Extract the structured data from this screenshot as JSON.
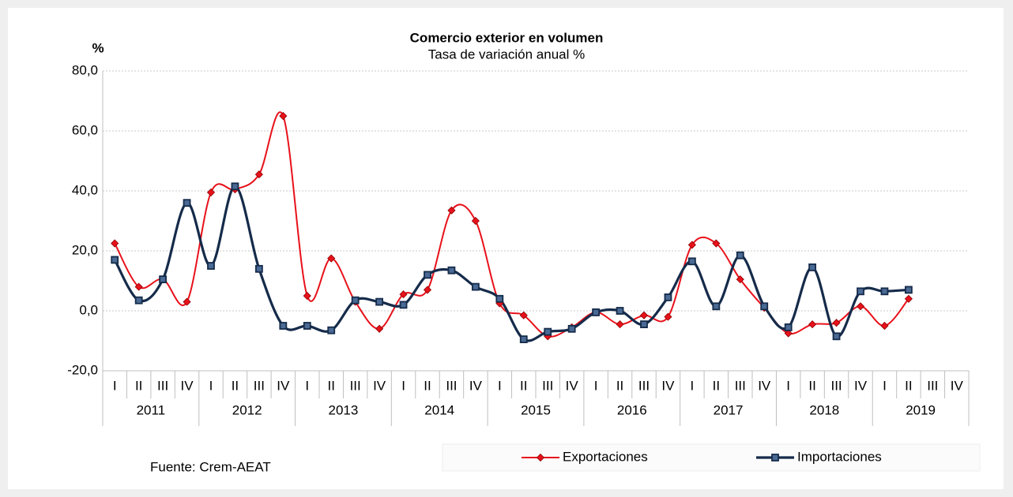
{
  "chart_data": {
    "type": "line",
    "title": "Comercio exterior en volumen",
    "subtitle": "Tasa de variación anual %",
    "y_label": "%",
    "source": "Fuente: Crem-AEAT",
    "categories": [
      "I",
      "II",
      "III",
      "IV",
      "I",
      "II",
      "III",
      "IV",
      "I",
      "II",
      "III",
      "IV",
      "I",
      "II",
      "III",
      "IV",
      "I",
      "II",
      "III",
      "IV",
      "I",
      "II",
      "III",
      "IV",
      "I",
      "II",
      "III",
      "IV",
      "I",
      "II",
      "III",
      "IV",
      "I",
      "II",
      "III",
      "IV"
    ],
    "category_groups": [
      "2011",
      "2012",
      "2013",
      "2014",
      "2015",
      "2016",
      "2017",
      "2018",
      "2019"
    ],
    "series": [
      {
        "name": "Exportaciones",
        "color": "#e8111a",
        "marker": "diamond",
        "values": [
          22.5,
          8,
          10.5,
          3,
          39.5,
          40.5,
          45.5,
          65,
          5,
          17.5,
          3,
          -6,
          5.5,
          7,
          33.5,
          30,
          2.5,
          -1.5,
          -8.5,
          -5.5,
          -0.5,
          -4.5,
          -1.5,
          -2,
          22,
          22.5,
          10.5,
          1,
          -7.5,
          -4.5,
          -4,
          1.5,
          -5,
          4,
          null,
          null
        ]
      },
      {
        "name": "Importaciones",
        "color": "#152b4a",
        "marker": "square",
        "values": [
          17,
          3.5,
          10.5,
          36,
          15,
          41.5,
          14,
          -5,
          -5,
          -6.5,
          3.5,
          3,
          2,
          12,
          13.5,
          8,
          4,
          -9.5,
          -7,
          -6,
          -0.5,
          0,
          -4.5,
          4.5,
          16.5,
          1.5,
          18.5,
          1.5,
          -5.5,
          14.5,
          -8.5,
          6.5,
          6.5,
          7,
          null,
          null
        ]
      }
    ],
    "ylim": [
      -20,
      80
    ],
    "yticks": [
      {
        "value": -20,
        "label": "-20,0"
      },
      {
        "value": 0,
        "label": "0,0"
      },
      {
        "value": 20,
        "label": "20,0"
      },
      {
        "value": 40,
        "label": "40,0"
      },
      {
        "value": 60,
        "label": "60,0"
      },
      {
        "value": 80,
        "label": "80,0"
      }
    ],
    "grid": true,
    "smooth": true,
    "legend": "bottom"
  }
}
